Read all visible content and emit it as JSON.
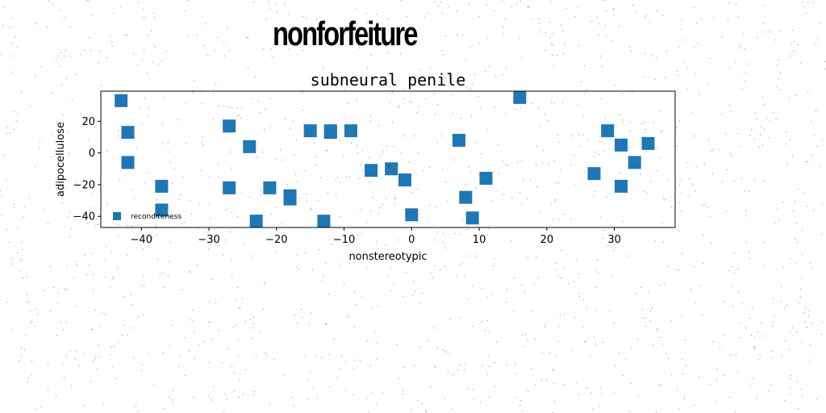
{
  "page": {
    "suptitle": "nonforfeiture"
  },
  "chart_data": {
    "type": "scatter",
    "title": "subneural penile",
    "xlabel": "nonstereotypic",
    "ylabel": "adipocellulose",
    "xlim": [
      -46,
      39
    ],
    "ylim": [
      -47,
      39
    ],
    "xticks": [
      -40,
      -30,
      -20,
      -10,
      0,
      10,
      20,
      30
    ],
    "yticks": [
      -40,
      -20,
      0,
      20
    ],
    "grid": false,
    "legend": {
      "placement": "lower-left"
    },
    "series": [
      {
        "name": "reconditeness",
        "color": "#1f77b4",
        "marker": "square",
        "x": [
          -43,
          -42,
          -42,
          -37,
          -37,
          -27,
          -27,
          -24,
          -23,
          -21,
          -18,
          -18,
          -15,
          -13,
          -12,
          -12,
          -9,
          -6,
          -3,
          -1,
          0,
          7,
          8,
          9,
          11,
          16,
          27,
          29,
          31,
          31,
          33,
          35
        ],
        "y": [
          33,
          13,
          -6,
          -21,
          -36,
          17,
          -22,
          4,
          -43,
          -22,
          -27,
          -29,
          14,
          -43,
          14,
          13,
          14,
          -11,
          -10,
          -17,
          -39,
          8,
          -28,
          -41,
          -16,
          35,
          -13,
          14,
          5,
          -21,
          -6,
          6
        ]
      }
    ]
  }
}
